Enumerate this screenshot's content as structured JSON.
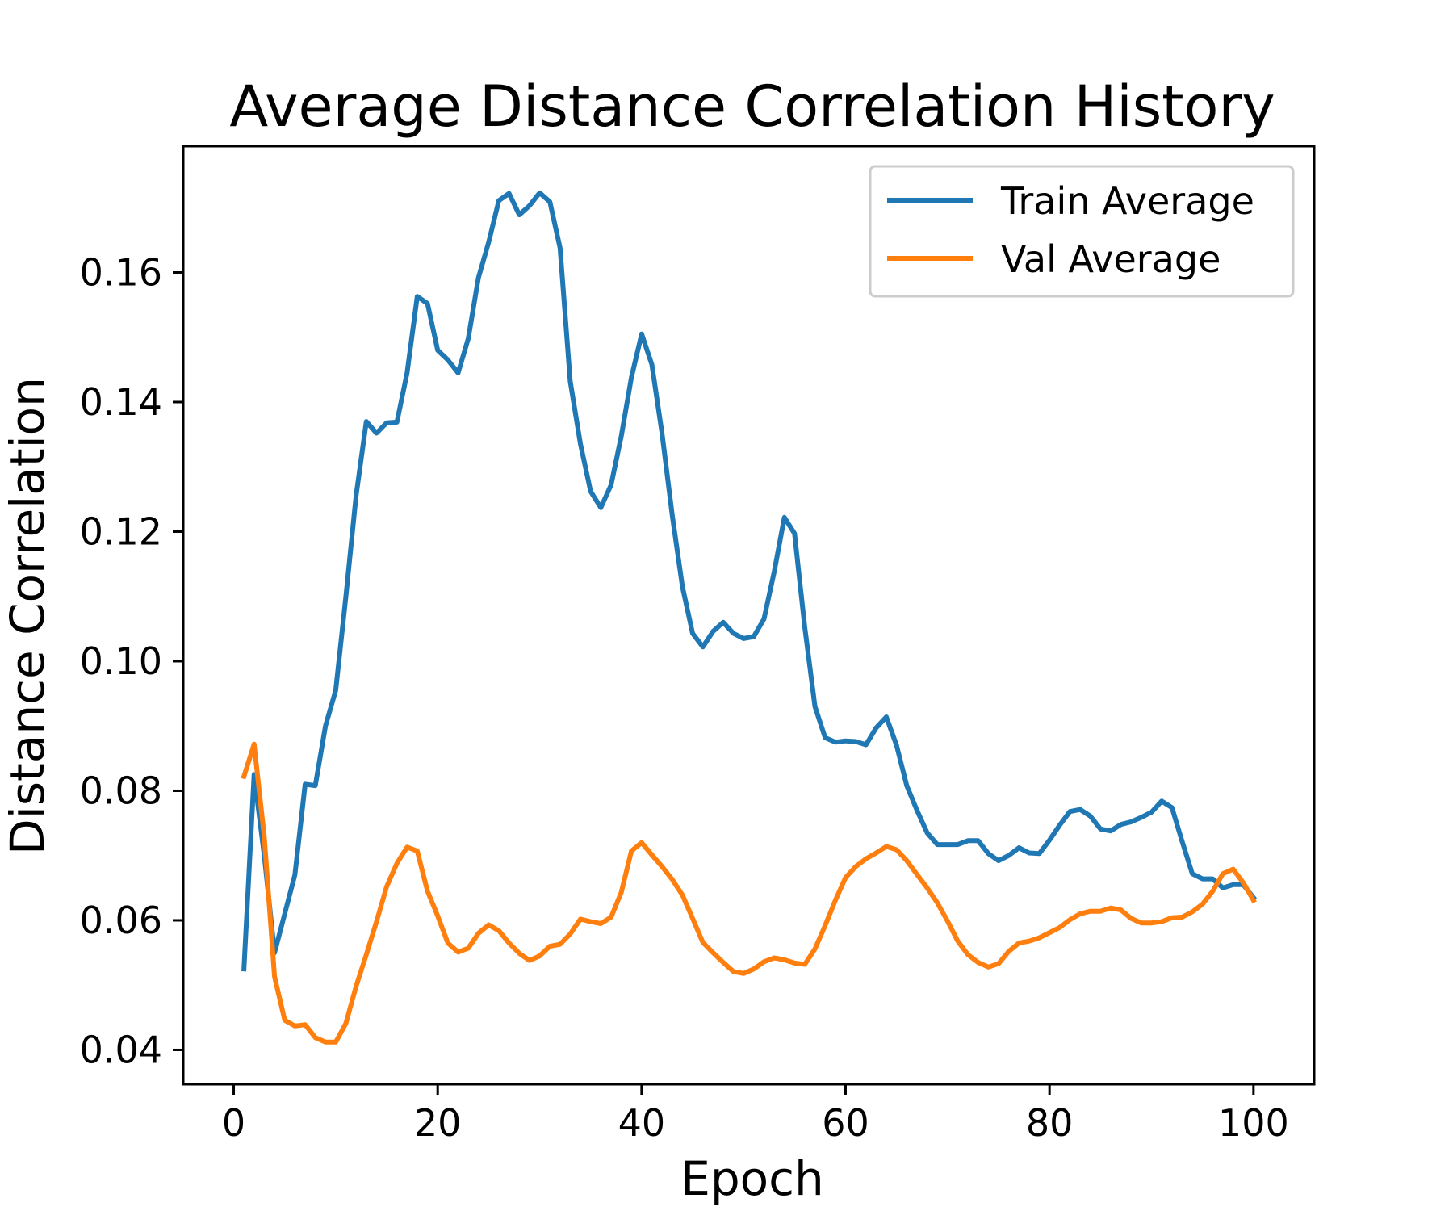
{
  "chart_data": {
    "type": "line",
    "title": "Average Distance Correlation History",
    "xlabel": "Epoch",
    "ylabel": "Distance Correlation",
    "xlim": [
      -4.95,
      105.95
    ],
    "ylim": [
      0.0347,
      0.1795
    ],
    "xticks": [
      0,
      20,
      40,
      60,
      80,
      100
    ],
    "yticks": [
      0.04,
      0.06,
      0.08,
      0.1,
      0.12,
      0.14,
      0.16
    ],
    "ytick_labels": [
      "0.04",
      "0.06",
      "0.08",
      "0.10",
      "0.12",
      "0.14",
      "0.16"
    ],
    "grid": false,
    "legend_position": "top-right",
    "x": [
      1,
      2,
      3,
      4,
      5,
      6,
      7,
      8,
      9,
      10,
      11,
      12,
      13,
      14,
      15,
      16,
      17,
      18,
      19,
      20,
      21,
      22,
      23,
      24,
      25,
      26,
      27,
      28,
      29,
      30,
      31,
      32,
      33,
      34,
      35,
      36,
      37,
      38,
      39,
      40,
      41,
      42,
      43,
      44,
      45,
      46,
      47,
      48,
      49,
      50,
      51,
      52,
      53,
      54,
      55,
      56,
      57,
      58,
      59,
      60,
      61,
      62,
      63,
      64,
      65,
      66,
      67,
      68,
      69,
      70,
      71,
      72,
      73,
      74,
      75,
      76,
      77,
      78,
      79,
      80,
      81,
      82,
      83,
      84,
      85,
      86,
      87,
      88,
      89,
      90,
      91,
      92,
      93,
      94,
      95,
      96,
      97,
      98,
      99,
      100
    ],
    "series": [
      {
        "name": "Train Average",
        "color": "#1f77b4",
        "values": [
          0.0525,
          0.0825,
          0.07,
          0.055,
          0.061,
          0.067,
          0.081,
          0.0808,
          0.09,
          0.0955,
          0.11,
          0.1255,
          0.137,
          0.1352,
          0.1368,
          0.1369,
          0.1445,
          0.1563,
          0.1552,
          0.148,
          0.1465,
          0.1445,
          0.1498,
          0.1592,
          0.1647,
          0.1711,
          0.1722,
          0.1689,
          0.1703,
          0.1723,
          0.1709,
          0.1638,
          0.1432,
          0.1335,
          0.1262,
          0.1237,
          0.1272,
          0.1347,
          0.1438,
          0.1505,
          0.1458,
          0.1352,
          0.1225,
          0.1115,
          0.1043,
          0.1022,
          0.1046,
          0.106,
          0.1043,
          0.1035,
          0.1038,
          0.1065,
          0.1138,
          0.1222,
          0.1197,
          0.1052,
          0.093,
          0.0882,
          0.0875,
          0.0877,
          0.0876,
          0.0871,
          0.0897,
          0.0914,
          0.087,
          0.0808,
          0.077,
          0.0735,
          0.0717,
          0.0717,
          0.0717,
          0.0723,
          0.0723,
          0.0703,
          0.0692,
          0.07,
          0.0712,
          0.0704,
          0.0703,
          0.0724,
          0.0747,
          0.0768,
          0.0771,
          0.0761,
          0.0741,
          0.0738,
          0.0748,
          0.0752,
          0.0759,
          0.0767,
          0.0784,
          0.0774,
          0.0722,
          0.0672,
          0.0664,
          0.0664,
          0.065,
          0.0655,
          0.0655,
          0.0635
        ]
      },
      {
        "name": "Val Average",
        "color": "#ff7f0e",
        "values": [
          0.0822,
          0.0872,
          0.0729,
          0.0513,
          0.0446,
          0.0437,
          0.0439,
          0.0419,
          0.0412,
          0.0412,
          0.0441,
          0.0498,
          0.0547,
          0.0598,
          0.0652,
          0.0688,
          0.0713,
          0.0707,
          0.0645,
          0.0607,
          0.0565,
          0.0551,
          0.0557,
          0.058,
          0.0593,
          0.0584,
          0.0565,
          0.0549,
          0.0538,
          0.0545,
          0.056,
          0.0563,
          0.0579,
          0.0602,
          0.0598,
          0.0595,
          0.0605,
          0.0643,
          0.0707,
          0.072,
          0.0701,
          0.0683,
          0.0663,
          0.0639,
          0.0603,
          0.0566,
          0.055,
          0.0535,
          0.0521,
          0.0518,
          0.0525,
          0.0536,
          0.0542,
          0.0539,
          0.0534,
          0.0532,
          0.0556,
          0.0592,
          0.0631,
          0.0666,
          0.0683,
          0.0695,
          0.0704,
          0.0714,
          0.0709,
          0.0692,
          0.0671,
          0.065,
          0.0627,
          0.0599,
          0.0568,
          0.0547,
          0.0535,
          0.0528,
          0.0533,
          0.0552,
          0.0565,
          0.0568,
          0.0573,
          0.0581,
          0.0589,
          0.0601,
          0.061,
          0.0614,
          0.0614,
          0.0619,
          0.0616,
          0.0603,
          0.0596,
          0.0596,
          0.0598,
          0.0604,
          0.0605,
          0.0613,
          0.0625,
          0.0645,
          0.0672,
          0.0679,
          0.0658,
          0.0631
        ]
      }
    ]
  }
}
